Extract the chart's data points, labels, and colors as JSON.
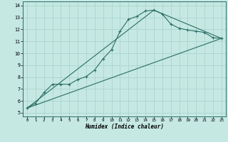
{
  "background_color": "#c5e8e3",
  "grid_color": "#a8d0ca",
  "line_color": "#2a6e64",
  "xlim_min": -0.5,
  "xlim_max": 23.5,
  "ylim_min": 4.7,
  "ylim_max": 14.35,
  "xticks": [
    0,
    1,
    2,
    3,
    4,
    5,
    6,
    7,
    8,
    9,
    10,
    11,
    12,
    13,
    14,
    15,
    16,
    17,
    18,
    19,
    20,
    21,
    22,
    23
  ],
  "yticks": [
    5,
    6,
    7,
    8,
    9,
    10,
    11,
    12,
    13,
    14
  ],
  "xlabel": "Humidex (Indice chaleur)",
  "curve1_x": [
    0,
    1,
    2,
    3,
    4,
    5,
    6,
    7,
    8,
    9,
    10,
    11,
    12,
    13,
    14,
    15,
    16,
    17,
    18,
    19,
    20,
    21,
    22,
    23
  ],
  "curve1_y": [
    5.4,
    5.8,
    6.7,
    7.4,
    7.4,
    7.4,
    7.8,
    8.05,
    8.6,
    9.55,
    10.3,
    11.85,
    12.85,
    13.1,
    13.55,
    13.62,
    13.3,
    12.45,
    12.1,
    11.95,
    11.85,
    11.75,
    11.3,
    11.25
  ],
  "line2_x": [
    0,
    23
  ],
  "line2_y": [
    5.4,
    11.25
  ],
  "line3_x": [
    0,
    15,
    23
  ],
  "line3_y": [
    5.4,
    13.62,
    11.25
  ]
}
